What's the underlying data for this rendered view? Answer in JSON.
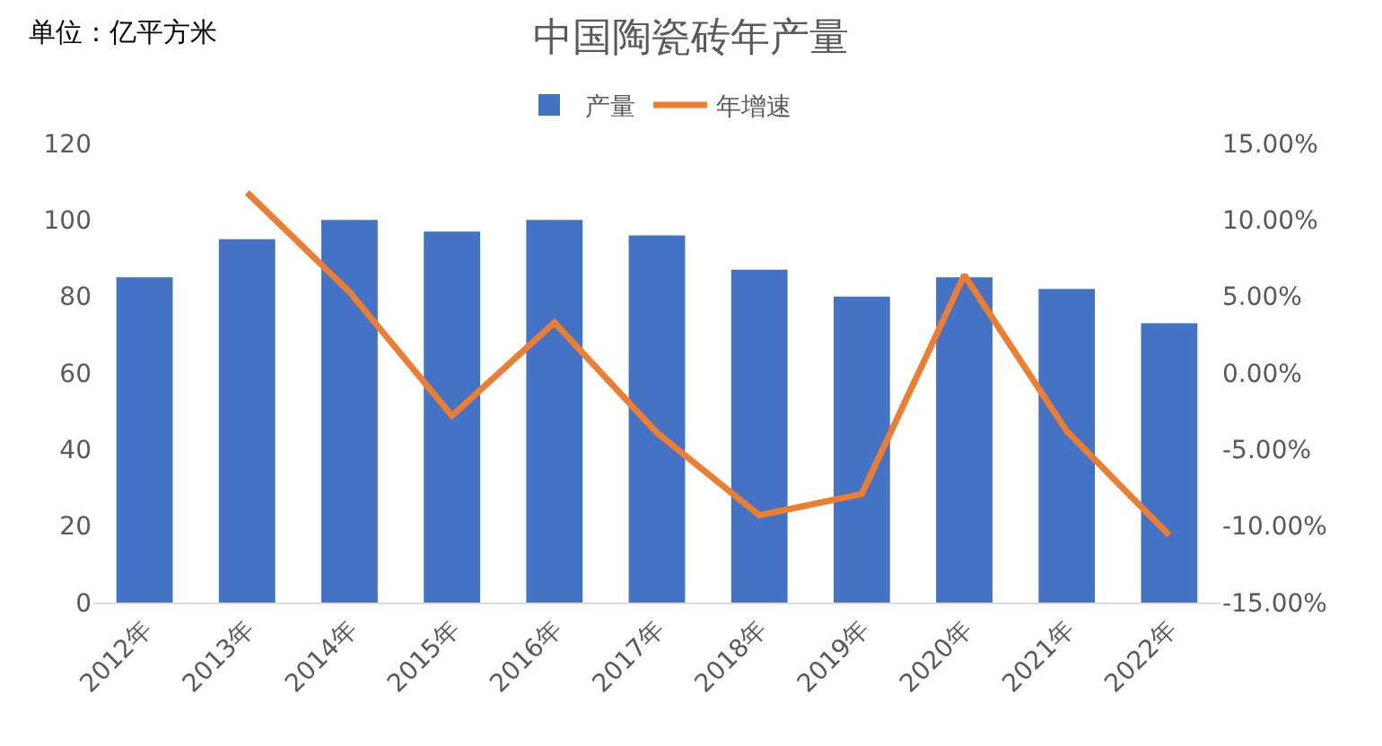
{
  "chart_data": {
    "type": "bar",
    "title": "中国陶瓷砖年产量",
    "ylabel": "单位：亿平方米",
    "categories": [
      "2012年",
      "2013年",
      "2014年",
      "2015年",
      "2016年",
      "2017年",
      "2018年",
      "2019年",
      "2020年",
      "2021年",
      "2022年"
    ],
    "series": [
      {
        "name": "产量",
        "color": "#4472c4",
        "values": [
          85,
          95,
          100,
          97,
          100,
          96,
          87,
          80,
          85,
          82,
          73
        ]
      },
      {
        "name": "年增速",
        "type": "line",
        "axis": "y2",
        "color": "#ed7d31",
        "values": [
          null,
          11.8,
          5.3,
          -2.8,
          3.3,
          -3.9,
          -9.3,
          -7.9,
          6.4,
          -3.8,
          -10.6
        ]
      }
    ],
    "ylim": [
      0,
      120
    ],
    "yticks": [
      0,
      20,
      40,
      60,
      80,
      100,
      120
    ],
    "y2lim": [
      -15,
      15
    ],
    "y2ticks": [
      {
        "value": -15,
        "label": "-15.00%"
      },
      {
        "value": -10,
        "label": "-10.00%"
      },
      {
        "value": -5,
        "label": "-5.00%"
      },
      {
        "value": 0,
        "label": "0.00%"
      },
      {
        "value": 5,
        "label": "5.00%"
      },
      {
        "value": 10,
        "label": "10.00%"
      },
      {
        "value": 15,
        "label": "15.00%"
      }
    ],
    "legend": "top",
    "grid": false,
    "marker": "none",
    "line_style": "solid"
  }
}
